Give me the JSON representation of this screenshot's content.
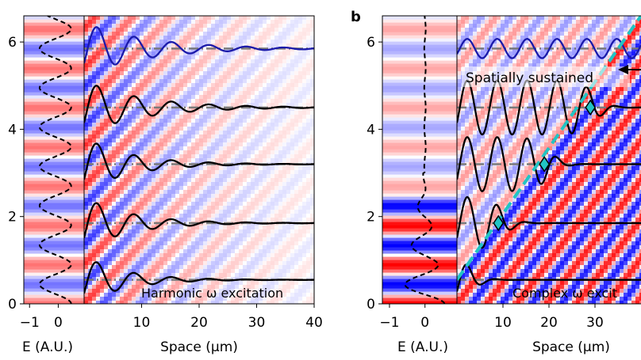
{
  "chart_data": [
    {
      "type": "line",
      "panel_label": "",
      "annotation": "Harmonic ω excitation",
      "left_xlabel": "E (A.U.)",
      "left_xticks": [
        "−1",
        "0"
      ],
      "left_xlim": [
        -1.2,
        0.9
      ],
      "xlabel": "Space (μm)",
      "xticks": [
        "10",
        "20",
        "30",
        "40"
      ],
      "xlim": [
        0,
        40
      ],
      "yticks": [
        "0",
        "2",
        "4",
        "6"
      ],
      "ylim": [
        0,
        6.6
      ],
      "baselines": [
        0.55,
        1.85,
        3.2,
        4.5,
        5.85
      ],
      "series": [
        {
          "name": "trace-1",
          "color": "#000000",
          "baseline": 0.55,
          "amplitude": 0.55,
          "decay": 7,
          "wavelength": 6.5
        },
        {
          "name": "trace-2",
          "color": "#000000",
          "baseline": 1.85,
          "amplitude": 0.6,
          "decay": 8,
          "wavelength": 6.5
        },
        {
          "name": "trace-3",
          "color": "#000000",
          "baseline": 3.2,
          "amplitude": 0.62,
          "decay": 8,
          "wavelength": 6.5
        },
        {
          "name": "trace-4",
          "color": "#000000",
          "baseline": 4.5,
          "amplitude": 0.62,
          "decay": 10,
          "wavelength": 6.5
        },
        {
          "name": "trace-5",
          "color": "#1a1aaa",
          "baseline": 5.85,
          "amplitude": 0.6,
          "decay": 11,
          "wavelength": 6.5
        }
      ]
    },
    {
      "type": "line",
      "panel_label": "b",
      "annotation": "Complex ω excit",
      "annotation_top": "Spatially sustained",
      "left_xlabel": "E (A.U.)",
      "left_xticks": [
        "−1",
        "0"
      ],
      "left_xlim": [
        -1.2,
        0.9
      ],
      "xlabel": "Space (μm)",
      "xticks": [
        "10",
        "20",
        "30"
      ],
      "xlim": [
        0,
        40
      ],
      "yticks": [
        "0",
        "2",
        "4",
        "6"
      ],
      "ylim": [
        0,
        6.6
      ],
      "baselines": [
        0.55,
        1.85,
        3.2,
        4.5,
        5.85
      ],
      "front_line": {
        "x": [
          0,
          40
        ],
        "y": [
          0.55,
          6.6
        ],
        "color": "#22c4c4"
      },
      "markers": [
        [
          9,
          1.85
        ],
        [
          19,
          3.2
        ],
        [
          29,
          4.5
        ]
      ],
      "series": [
        {
          "name": "trace-1",
          "color": "#000000",
          "baseline": 0.55,
          "amplitude": 0.55,
          "front": 3,
          "wavelength": 6.5
        },
        {
          "name": "trace-2",
          "color": "#000000",
          "baseline": 1.85,
          "amplitude": 0.6,
          "front": 10,
          "wavelength": 6.5
        },
        {
          "name": "trace-3",
          "color": "#000000",
          "baseline": 3.2,
          "amplitude": 0.62,
          "front": 20,
          "wavelength": 6.5
        },
        {
          "name": "trace-4",
          "color": "#000000",
          "baseline": 4.5,
          "amplitude": 0.62,
          "front": 30,
          "wavelength": 6.5
        },
        {
          "name": "trace-5",
          "color": "#1a1aaa",
          "baseline": 5.85,
          "amplitude": 0.22,
          "front": 999,
          "wavelength": 6.5
        }
      ]
    }
  ]
}
